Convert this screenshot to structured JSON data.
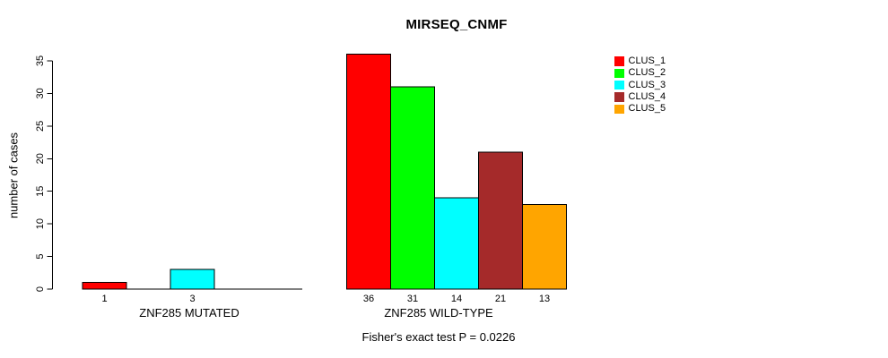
{
  "chart_data": {
    "type": "bar",
    "title": "MIRSEQ_CNMF",
    "ylabel": "number of cases",
    "ylim": [
      0,
      35
    ],
    "yticks": [
      0,
      5,
      10,
      15,
      20,
      25,
      30,
      35
    ],
    "grid": false,
    "clusters": [
      "CLUS_1",
      "CLUS_2",
      "CLUS_3",
      "CLUS_4",
      "CLUS_5"
    ],
    "colors": [
      "#ff0000",
      "#00ff00",
      "#00ffff",
      "#a52a2a",
      "#ffa500"
    ],
    "panels": [
      {
        "xlabel": "ZNF285 MUTATED",
        "values": [
          1,
          0,
          3,
          0,
          0
        ],
        "bar_labels": [
          "1",
          "",
          "3",
          "",
          ""
        ]
      },
      {
        "xlabel": "ZNF285 WILD-TYPE",
        "values": [
          36,
          31,
          14,
          21,
          13
        ],
        "bar_labels": [
          "36",
          "31",
          "14",
          "21",
          "13"
        ]
      }
    ],
    "legend": {
      "position": "top-right",
      "entries": [
        {
          "label": "CLUS_1",
          "color": "#ff0000"
        },
        {
          "label": "CLUS_2",
          "color": "#00ff00"
        },
        {
          "label": "CLUS_3",
          "color": "#00ffff"
        },
        {
          "label": "CLUS_4",
          "color": "#a52a2a"
        },
        {
          "label": "CLUS_5",
          "color": "#ffa500"
        }
      ]
    },
    "footnote": "Fisher's exact test P = 0.0226"
  }
}
